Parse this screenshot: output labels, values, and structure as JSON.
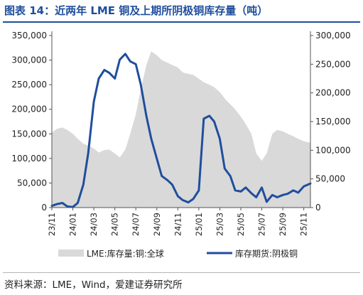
{
  "header": {
    "title": "图表 14：近两年 LME 铜及上期所阴极铜库存量（吨）"
  },
  "footer": {
    "source": "资料来源：LME，Wind，爱建证券研究所"
  },
  "chart_data": {
    "type": "area+line",
    "x_ticks": [
      "23/11",
      "24/01",
      "24/03",
      "24/05",
      "24/07",
      "24/09",
      "24/11",
      "25/01",
      "25/03",
      "25/05",
      "25/07",
      "25/09",
      "25/11"
    ],
    "x_range_months": [
      "2023-11",
      "2025-11"
    ],
    "y_left": {
      "ticks": [
        "0",
        "50,000",
        "100,000",
        "150,000",
        "200,000",
        "250,000",
        "300,000",
        "350,000"
      ],
      "min": 0,
      "max": 350000
    },
    "y_right": {
      "ticks": [
        "0",
        "50,000",
        "100,000",
        "150,000",
        "200,000",
        "250,000",
        "300,000"
      ],
      "min": 0,
      "max": 300000
    },
    "grid": false,
    "legend_position": "bottom",
    "series": [
      {
        "name": "LME:库存量:铜:全球",
        "kind": "area",
        "axis": "left",
        "color": "#d9d9d9",
        "points": [
          [
            "2023-11-01",
            152000
          ],
          [
            "2023-11-15",
            160000
          ],
          [
            "2023-12-01",
            163000
          ],
          [
            "2023-12-15",
            158000
          ],
          [
            "2024-01-01",
            150000
          ],
          [
            "2024-01-15",
            140000
          ],
          [
            "2024-02-01",
            130000
          ],
          [
            "2024-02-15",
            126000
          ],
          [
            "2024-03-01",
            120000
          ],
          [
            "2024-03-15",
            112000
          ],
          [
            "2024-04-01",
            117000
          ],
          [
            "2024-04-15",
            118000
          ],
          [
            "2024-05-01",
            110000
          ],
          [
            "2024-05-15",
            102000
          ],
          [
            "2024-06-01",
            118000
          ],
          [
            "2024-06-15",
            150000
          ],
          [
            "2024-07-01",
            190000
          ],
          [
            "2024-07-15",
            240000
          ],
          [
            "2024-08-01",
            290000
          ],
          [
            "2024-08-15",
            318000
          ],
          [
            "2024-09-01",
            310000
          ],
          [
            "2024-09-15",
            300000
          ],
          [
            "2024-10-01",
            295000
          ],
          [
            "2024-10-15",
            290000
          ],
          [
            "2024-11-01",
            285000
          ],
          [
            "2024-11-15",
            275000
          ],
          [
            "2024-12-01",
            272000
          ],
          [
            "2024-12-15",
            270000
          ],
          [
            "2025-01-01",
            262000
          ],
          [
            "2025-01-15",
            255000
          ],
          [
            "2025-02-01",
            250000
          ],
          [
            "2025-02-15",
            245000
          ],
          [
            "2025-03-01",
            235000
          ],
          [
            "2025-03-15",
            222000
          ],
          [
            "2025-04-01",
            210000
          ],
          [
            "2025-04-15",
            200000
          ],
          [
            "2025-05-01",
            185000
          ],
          [
            "2025-05-15",
            170000
          ],
          [
            "2025-06-01",
            150000
          ],
          [
            "2025-06-15",
            110000
          ],
          [
            "2025-07-01",
            95000
          ],
          [
            "2025-07-15",
            110000
          ],
          [
            "2025-08-01",
            150000
          ],
          [
            "2025-08-15",
            158000
          ],
          [
            "2025-09-01",
            155000
          ],
          [
            "2025-09-15",
            150000
          ],
          [
            "2025-10-01",
            145000
          ],
          [
            "2025-10-15",
            140000
          ],
          [
            "2025-11-01",
            135000
          ],
          [
            "2025-11-20",
            132000
          ]
        ]
      },
      {
        "name": "库存期货:阴极铜",
        "kind": "line",
        "axis": "right",
        "color": "#1f4e9c",
        "points": [
          [
            "2023-11-01",
            3000
          ],
          [
            "2023-11-15",
            6000
          ],
          [
            "2023-12-01",
            8000
          ],
          [
            "2023-12-15",
            2000
          ],
          [
            "2024-01-01",
            1000
          ],
          [
            "2024-01-15",
            8000
          ],
          [
            "2024-02-01",
            40000
          ],
          [
            "2024-02-15",
            95000
          ],
          [
            "2024-03-01",
            185000
          ],
          [
            "2024-03-15",
            225000
          ],
          [
            "2024-04-01",
            240000
          ],
          [
            "2024-04-15",
            235000
          ],
          [
            "2024-05-01",
            225000
          ],
          [
            "2024-05-15",
            258000
          ],
          [
            "2024-06-01",
            268000
          ],
          [
            "2024-06-15",
            255000
          ],
          [
            "2024-07-01",
            250000
          ],
          [
            "2024-07-15",
            215000
          ],
          [
            "2024-08-01",
            160000
          ],
          [
            "2024-08-15",
            120000
          ],
          [
            "2024-09-01",
            85000
          ],
          [
            "2024-09-15",
            55000
          ],
          [
            "2024-10-01",
            48000
          ],
          [
            "2024-10-15",
            40000
          ],
          [
            "2024-11-01",
            20000
          ],
          [
            "2024-11-15",
            13000
          ],
          [
            "2024-12-01",
            9000
          ],
          [
            "2024-12-15",
            15000
          ],
          [
            "2025-01-01",
            30000
          ],
          [
            "2025-01-15",
            155000
          ],
          [
            "2025-02-01",
            160000
          ],
          [
            "2025-02-15",
            150000
          ],
          [
            "2025-03-01",
            120000
          ],
          [
            "2025-03-15",
            68000
          ],
          [
            "2025-04-01",
            55000
          ],
          [
            "2025-04-15",
            30000
          ],
          [
            "2025-05-01",
            28000
          ],
          [
            "2025-05-15",
            35000
          ],
          [
            "2025-06-01",
            25000
          ],
          [
            "2025-06-15",
            18000
          ],
          [
            "2025-07-01",
            35000
          ],
          [
            "2025-07-15",
            10000
          ],
          [
            "2025-08-01",
            22000
          ],
          [
            "2025-08-15",
            18000
          ],
          [
            "2025-09-01",
            22000
          ],
          [
            "2025-09-15",
            24000
          ],
          [
            "2025-10-01",
            30000
          ],
          [
            "2025-10-15",
            26000
          ],
          [
            "2025-11-01",
            37000
          ],
          [
            "2025-11-20",
            42000
          ]
        ]
      }
    ]
  }
}
